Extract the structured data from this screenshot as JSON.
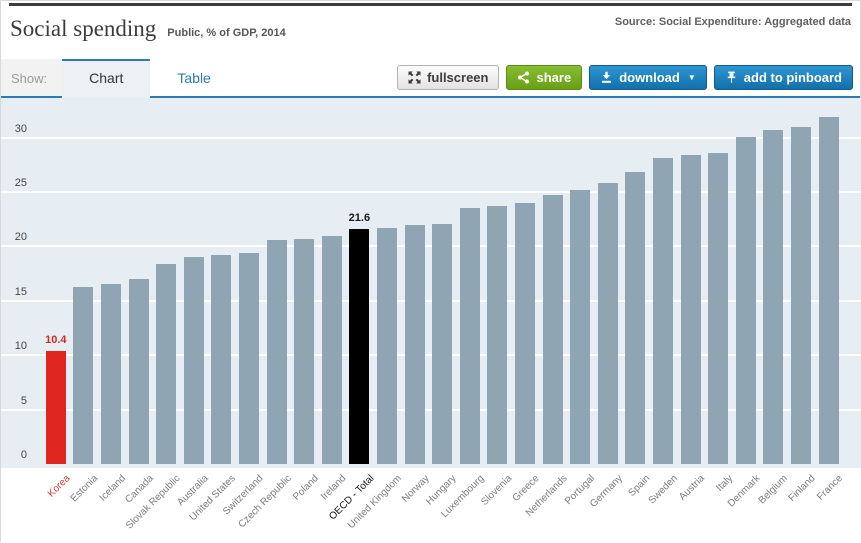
{
  "header": {
    "title": "Social spending",
    "subtitle": "Public, % of GDP, 2014",
    "source": "Source: Social Expenditure: Aggregated data"
  },
  "tabs": {
    "show_label": "Show:",
    "items": [
      {
        "label": "Chart",
        "active": true
      },
      {
        "label": "Table",
        "active": false
      }
    ]
  },
  "toolbar": {
    "fullscreen_label": "fullscreen",
    "share_label": "share",
    "download_label": "download",
    "download_caret": "▼",
    "pinboard_label": "add to pinboard",
    "icons": [
      "expand-icon",
      "share-icon",
      "download-icon",
      "pin-icon"
    ],
    "colors": {
      "fullscreen": "#e9e9e9",
      "share": "#76ac20",
      "blue": "#1b7fba"
    }
  },
  "chart_data": {
    "type": "bar",
    "title": "Social spending",
    "subtitle": "Public, % of GDP, 2014",
    "xlabel": "",
    "ylabel": "% of GDP",
    "ylim": [
      0,
      32.5
    ],
    "yticks": [
      0,
      5,
      10,
      15,
      20,
      25,
      30
    ],
    "grid": true,
    "legend": "none",
    "background": "#e6eef4",
    "gridline_color": "#ffffff",
    "bar_color_default": "#90a5b3",
    "tick_label_color_default": "#7b7b7b",
    "categories": [
      "Korea",
      "Estonia",
      "Iceland",
      "Canada",
      "Slovak Republic",
      "Australia",
      "United States",
      "Switzerland",
      "Czech Republic",
      "Poland",
      "Ireland",
      "OECD - Total",
      "United Kingdom",
      "Norway",
      "Hungary",
      "Luxembourg",
      "Slovenia",
      "Greece",
      "Netherlands",
      "Portugal",
      "Germany",
      "Spain",
      "Sweden",
      "Austria",
      "Italy",
      "Denmark",
      "Belgium",
      "Finland",
      "France"
    ],
    "values": [
      10.4,
      16.3,
      16.5,
      17.0,
      18.4,
      19.0,
      19.2,
      19.4,
      20.6,
      20.7,
      21.0,
      21.6,
      21.7,
      22.0,
      22.1,
      23.5,
      23.7,
      24.0,
      24.7,
      25.2,
      25.8,
      26.8,
      28.1,
      28.4,
      28.6,
      30.1,
      30.7,
      31.0,
      31.9
    ],
    "highlights": [
      {
        "category": "Korea",
        "bar_color": "#e02620",
        "value_label": "10.4",
        "value_label_color": "#d22822",
        "tick_color": "#cc3b36"
      },
      {
        "category": "OECD - Total",
        "bar_color": "#000000",
        "value_label": "21.6",
        "value_label_color": "#1a1a1a",
        "tick_color": "#111111"
      }
    ]
  }
}
